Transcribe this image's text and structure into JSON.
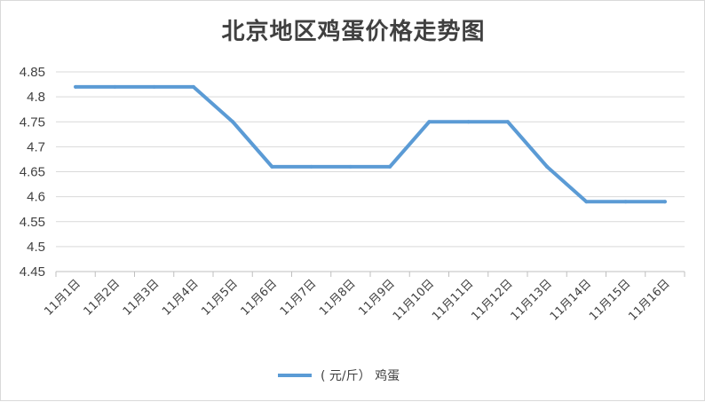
{
  "chart_data": {
    "type": "line",
    "title": "北京地区鸡蛋价格走势图",
    "xlabel": "",
    "ylabel": "",
    "categories": [
      "11月1日",
      "11月2日",
      "11月3日",
      "11月4日",
      "11月5日",
      "11月6日",
      "11月7日",
      "11月8日",
      "11月9日",
      "11月10日",
      "11月11日",
      "11月12日",
      "11月13日",
      "11月14日",
      "11月15日",
      "11月16日"
    ],
    "series": [
      {
        "name": "( 元/斤） 鸡蛋",
        "values": [
          4.82,
          4.82,
          4.82,
          4.82,
          4.75,
          4.66,
          4.66,
          4.66,
          4.66,
          4.75,
          4.75,
          4.75,
          4.66,
          4.59,
          4.59,
          4.59
        ],
        "color": "#5b9bd5"
      }
    ],
    "ylim": [
      4.45,
      4.85
    ],
    "yticks": [
      "4.45",
      "4.5",
      "4.55",
      "4.6",
      "4.65",
      "4.7",
      "4.75",
      "4.8",
      "4.85"
    ],
    "grid": true,
    "legend_position": "bottom"
  }
}
